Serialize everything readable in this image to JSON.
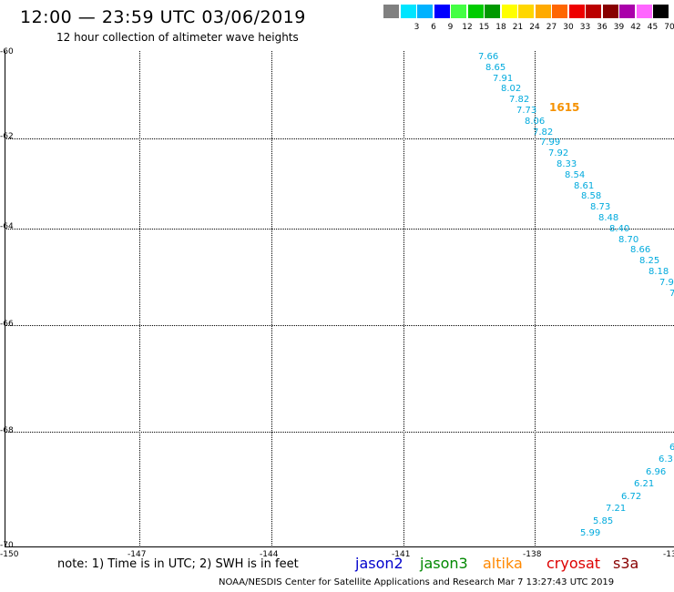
{
  "title": "12:00 — 23:59 UTC 03/06/2019",
  "subtitle": "12 hour collection of altimeter wave heights",
  "color_scale": {
    "unit": "(ft)",
    "entries": [
      {
        "label": "",
        "color": "#808080"
      },
      {
        "label": "3",
        "color": "#00e5ff"
      },
      {
        "label": "6",
        "color": "#00b2ff"
      },
      {
        "label": "9",
        "color": "#0000ff"
      },
      {
        "label": "12",
        "color": "#44ff44"
      },
      {
        "label": "15",
        "color": "#00cc00"
      },
      {
        "label": "18",
        "color": "#009900"
      },
      {
        "label": "21",
        "color": "#ffff00"
      },
      {
        "label": "24",
        "color": "#ffd700"
      },
      {
        "label": "27",
        "color": "#ffaa00"
      },
      {
        "label": "30",
        "color": "#ff6600"
      },
      {
        "label": "33",
        "color": "#ee0000"
      },
      {
        "label": "36",
        "color": "#bb0000"
      },
      {
        "label": "39",
        "color": "#880000"
      },
      {
        "label": "42",
        "color": "#aa00aa"
      },
      {
        "label": "45",
        "color": "#ff66ff"
      },
      {
        "label": "70",
        "color": "#000000"
      }
    ]
  },
  "axes": {
    "lat_labels": [
      "-60",
      "-62",
      "-64",
      "-66",
      "-68",
      "-70"
    ],
    "lon_labels": [
      "-150",
      "-147",
      "-144",
      "-141",
      "-138",
      "-13"
    ]
  },
  "pass_time_label": "1615",
  "track1": [
    "7.66",
    "8.65",
    "7.91",
    "8.02",
    "7.82",
    "7.73",
    "8.06",
    "7.82",
    "7.99",
    "7.92",
    "8.33",
    "8.54",
    "8.61",
    "8.58",
    "8.73",
    "8.48",
    "8.40",
    "8.70",
    "8.66",
    "8.25",
    "8.18",
    "7.9",
    "7"
  ],
  "track2": [
    "6",
    "6.3",
    "6.96",
    "6.21",
    "6.72",
    "7.21",
    "5.85",
    "5.99"
  ],
  "note": "note: 1) Time is in UTC; 2) SWH is in feet",
  "satellites": [
    {
      "name": "jason2",
      "color": "#0000cc"
    },
    {
      "name": "jason3",
      "color": "#008800"
    },
    {
      "name": "altika",
      "color": "#ff8800"
    },
    {
      "name": "cryosat",
      "color": "#dd0000"
    },
    {
      "name": "s3a",
      "color": "#880000"
    }
  ],
  "footer": "NOAA/NESDIS Center for Satellite Applications and Research   Mar  7 13:27:43 UTC 2019",
  "track_color": "#00aadd"
}
